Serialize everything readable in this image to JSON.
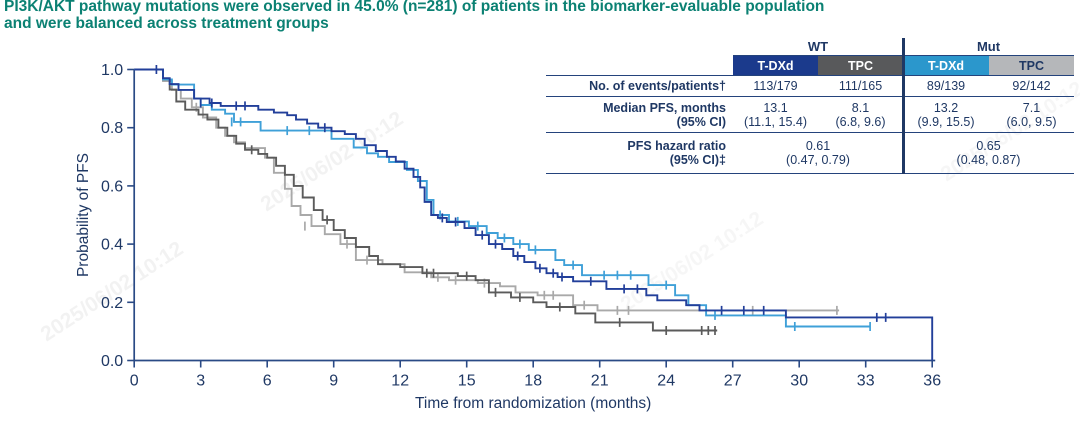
{
  "title": {
    "line1": "PI3K/AKT pathway mutations were observed in 45.0% (n=281) of patients in the biomarker-evaluable population",
    "line2": "and were balanced across treatment groups"
  },
  "watermark": {
    "text": "2025/06/02 10:12"
  },
  "colors": {
    "title_teal": "#0b8173",
    "navy_text": "#1f3864",
    "axis": "#2a4a85",
    "hdr_wt_tdxd_bg": "#1b3a8c",
    "hdr_wt_tpc_bg": "#58595b",
    "hdr_mut_tdxd_bg": "#2b97cc",
    "hdr_mut_tpc_bg": "#b5b7ba"
  },
  "table": {
    "group_headers": [
      "WT",
      "Mut"
    ],
    "col_headers": [
      "T-DXd",
      "TPC",
      "T-DXd",
      "TPC"
    ],
    "row_events": {
      "label": "No. of events/patients†",
      "values": [
        "113/179",
        "111/165",
        "89/139",
        "92/142"
      ]
    },
    "row_median": {
      "label": "Median PFS, months",
      "label_sub": "(95% CI)",
      "values": [
        "13.1",
        "8.1",
        "13.2",
        "7.1"
      ],
      "ci": [
        "(11.1, 15.4)",
        "(6.8, 9.6)",
        "(9.9, 15.5)",
        "(6.0, 9.5)"
      ]
    },
    "row_hr": {
      "label": "PFS hazard ratio",
      "label_sub": "(95% CI)‡",
      "values": [
        "0.61",
        "0.65"
      ],
      "ci": [
        "(0.47, 0.79)",
        "(0.48, 0.87)"
      ]
    }
  },
  "chart_data": {
    "type": "line",
    "subtype": "kaplan-meier-step",
    "title": "",
    "xlabel": "Time from randomization (months)",
    "ylabel": "Probability of PFS",
    "xlim": [
      0,
      36
    ],
    "ylim": [
      0.0,
      1.0
    ],
    "xticks": [
      0,
      3,
      6,
      9,
      12,
      15,
      18,
      21,
      24,
      27,
      30,
      33,
      36
    ],
    "yticks": [
      0.0,
      0.2,
      0.4,
      0.6,
      0.8,
      1.0
    ],
    "grid": false,
    "legend": "none (series identified by table header colors)",
    "series": [
      {
        "id": "tpc_mut",
        "name": "TPC — Mut",
        "color": "#a9a9a9",
        "median_pfs_months": 7.1,
        "steps": [
          [
            0,
            1
          ],
          [
            1.3,
            0.96
          ],
          [
            1.7,
            0.93
          ],
          [
            2.1,
            0.9
          ],
          [
            2.6,
            0.87
          ],
          [
            3.1,
            0.835
          ],
          [
            3.7,
            0.8
          ],
          [
            4.1,
            0.772
          ],
          [
            4.5,
            0.75
          ],
          [
            5,
            0.73
          ],
          [
            5.9,
            0.697
          ],
          [
            6.3,
            0.645
          ],
          [
            6.8,
            0.59
          ],
          [
            7.1,
            0.531
          ],
          [
            7.5,
            0.5
          ],
          [
            8,
            0.462
          ],
          [
            8.6,
            0.434
          ],
          [
            9.3,
            0.4
          ],
          [
            10,
            0.345
          ],
          [
            11.2,
            0.331
          ],
          [
            12.2,
            0.303
          ],
          [
            13.4,
            0.286
          ],
          [
            14.2,
            0.276
          ],
          [
            15.5,
            0.266
          ],
          [
            16.5,
            0.255
          ],
          [
            17.2,
            0.234
          ],
          [
            18.2,
            0.224
          ],
          [
            19.8,
            0.19
          ],
          [
            20.9,
            0.172
          ],
          [
            31.8,
            0.172
          ]
        ],
        "censors": [
          [
            2.8,
            0.87
          ],
          [
            7.7,
            0.462
          ],
          [
            9.6,
            0.4
          ],
          [
            10.5,
            0.345
          ],
          [
            13.7,
            0.286
          ],
          [
            14.5,
            0.276
          ],
          [
            15.8,
            0.266
          ],
          [
            18.5,
            0.224
          ],
          [
            18.9,
            0.224
          ],
          [
            20.3,
            0.19
          ],
          [
            21.8,
            0.172
          ],
          [
            22.3,
            0.172
          ],
          [
            27.9,
            0.172
          ],
          [
            31.7,
            0.172
          ]
        ],
        "terminal_drop": false
      },
      {
        "id": "tpc_wt",
        "name": "TPC — WT",
        "color": "#5b5b5b",
        "median_pfs_months": 8.1,
        "steps": [
          [
            0,
            1
          ],
          [
            1.3,
            0.966
          ],
          [
            1.6,
            0.931
          ],
          [
            1.9,
            0.89
          ],
          [
            2.3,
            0.862
          ],
          [
            2.9,
            0.845
          ],
          [
            3.3,
            0.828
          ],
          [
            3.8,
            0.8
          ],
          [
            4.2,
            0.772
          ],
          [
            4.6,
            0.745
          ],
          [
            5,
            0.724
          ],
          [
            5.6,
            0.71
          ],
          [
            6,
            0.697
          ],
          [
            6.4,
            0.669
          ],
          [
            6.8,
            0.638
          ],
          [
            7.2,
            0.6
          ],
          [
            7.6,
            0.56
          ],
          [
            8.1,
            0.517
          ],
          [
            8.5,
            0.483
          ],
          [
            9,
            0.448
          ],
          [
            9.5,
            0.421
          ],
          [
            10,
            0.39
          ],
          [
            10.6,
            0.359
          ],
          [
            11,
            0.331
          ],
          [
            12,
            0.321
          ],
          [
            13,
            0.3
          ],
          [
            14.6,
            0.29
          ],
          [
            15.4,
            0.276
          ],
          [
            16,
            0.234
          ],
          [
            17,
            0.217
          ],
          [
            18,
            0.2
          ],
          [
            18.6,
            0.184
          ],
          [
            19.9,
            0.162
          ],
          [
            20.8,
            0.131
          ],
          [
            23.4,
            0.103
          ],
          [
            26.3,
            0.103
          ]
        ],
        "censors": [
          [
            5.3,
            0.724
          ],
          [
            8.7,
            0.483
          ],
          [
            13.2,
            0.3
          ],
          [
            13.5,
            0.3
          ],
          [
            15,
            0.29
          ],
          [
            16.3,
            0.234
          ],
          [
            17.4,
            0.217
          ],
          [
            19.2,
            0.184
          ],
          [
            21.9,
            0.131
          ],
          [
            24,
            0.103
          ],
          [
            25.6,
            0.103
          ],
          [
            25.9,
            0.103
          ],
          [
            26.2,
            0.103
          ]
        ],
        "terminal_drop": false
      },
      {
        "id": "tdxd_mut",
        "name": "T-DXd — Mut",
        "color": "#3fa0d8",
        "median_pfs_months": 13.2,
        "steps": [
          [
            0,
            1
          ],
          [
            1.3,
            0.966
          ],
          [
            1.7,
            0.948
          ],
          [
            2.7,
            0.9
          ],
          [
            3,
            0.878
          ],
          [
            3.5,
            0.862
          ],
          [
            4.1,
            0.848
          ],
          [
            4.5,
            0.82
          ],
          [
            5.7,
            0.79
          ],
          [
            8.9,
            0.762
          ],
          [
            9.9,
            0.732
          ],
          [
            10.5,
            0.712
          ],
          [
            11,
            0.7
          ],
          [
            11.5,
            0.682
          ],
          [
            12.3,
            0.655
          ],
          [
            12.8,
            0.617
          ],
          [
            13.2,
            0.552
          ],
          [
            13.5,
            0.5
          ],
          [
            14.2,
            0.478
          ],
          [
            15.1,
            0.462
          ],
          [
            15.9,
            0.438
          ],
          [
            16.4,
            0.421
          ],
          [
            17.1,
            0.4
          ],
          [
            17.8,
            0.38
          ],
          [
            19,
            0.345
          ],
          [
            19.4,
            0.328
          ],
          [
            20.2,
            0.293
          ],
          [
            23.2,
            0.259
          ],
          [
            24.4,
            0.224
          ],
          [
            25,
            0.19
          ],
          [
            25.8,
            0.155
          ],
          [
            29.4,
            0.117
          ],
          [
            33.2,
            0.117
          ]
        ],
        "censors": [
          [
            4.4,
            0.82
          ],
          [
            4.8,
            0.82
          ],
          [
            6.9,
            0.79
          ],
          [
            7.9,
            0.79
          ],
          [
            13.8,
            0.5
          ],
          [
            14.6,
            0.478
          ],
          [
            15.5,
            0.462
          ],
          [
            16.7,
            0.421
          ],
          [
            17.4,
            0.4
          ],
          [
            18.1,
            0.38
          ],
          [
            19.8,
            0.328
          ],
          [
            21.2,
            0.293
          ],
          [
            21.8,
            0.293
          ],
          [
            22.4,
            0.293
          ],
          [
            24,
            0.259
          ],
          [
            26.2,
            0.155
          ],
          [
            29.8,
            0.117
          ],
          [
            33.2,
            0.117
          ]
        ],
        "terminal_drop": false
      },
      {
        "id": "tdxd_wt",
        "name": "T-DXd — WT",
        "color": "#223f9a",
        "median_pfs_months": 13.1,
        "steps": [
          [
            0,
            1
          ],
          [
            1.3,
            0.97
          ],
          [
            1.6,
            0.95
          ],
          [
            2,
            0.93
          ],
          [
            2.7,
            0.9
          ],
          [
            3.4,
            0.885
          ],
          [
            3.9,
            0.875
          ],
          [
            5.6,
            0.862
          ],
          [
            6.3,
            0.852
          ],
          [
            6.9,
            0.843
          ],
          [
            7.3,
            0.828
          ],
          [
            7.8,
            0.814
          ],
          [
            8.3,
            0.8
          ],
          [
            8.9,
            0.788
          ],
          [
            9.5,
            0.778
          ],
          [
            10,
            0.762
          ],
          [
            10.4,
            0.74
          ],
          [
            10.9,
            0.72
          ],
          [
            11.4,
            0.7
          ],
          [
            11.8,
            0.684
          ],
          [
            12.2,
            0.659
          ],
          [
            12.6,
            0.631
          ],
          [
            12.9,
            0.595
          ],
          [
            13.1,
            0.545
          ],
          [
            13.4,
            0.5
          ],
          [
            13.7,
            0.49
          ],
          [
            14.1,
            0.476
          ],
          [
            14.9,
            0.455
          ],
          [
            15.4,
            0.431
          ],
          [
            16,
            0.4
          ],
          [
            16.6,
            0.383
          ],
          [
            17.1,
            0.359
          ],
          [
            17.6,
            0.338
          ],
          [
            18.1,
            0.317
          ],
          [
            18.6,
            0.3
          ],
          [
            19.1,
            0.287
          ],
          [
            19.8,
            0.272
          ],
          [
            21.3,
            0.246
          ],
          [
            23.1,
            0.224
          ],
          [
            23.6,
            0.207
          ],
          [
            24.9,
            0.19
          ],
          [
            25.5,
            0.172
          ],
          [
            29.4,
            0.148
          ],
          [
            36,
            0
          ]
        ],
        "censors": [
          [
            1,
            1
          ],
          [
            3,
            0.885
          ],
          [
            3.5,
            0.885
          ],
          [
            4.6,
            0.875
          ],
          [
            5,
            0.875
          ],
          [
            8.6,
            0.8
          ],
          [
            13.9,
            0.49
          ],
          [
            14.5,
            0.476
          ],
          [
            15.7,
            0.431
          ],
          [
            16.3,
            0.4
          ],
          [
            17.3,
            0.359
          ],
          [
            18.3,
            0.317
          ],
          [
            18.9,
            0.3
          ],
          [
            19.3,
            0.287
          ],
          [
            20.6,
            0.272
          ],
          [
            22.1,
            0.246
          ],
          [
            22.7,
            0.246
          ],
          [
            26.5,
            0.172
          ],
          [
            27.5,
            0.172
          ],
          [
            28.4,
            0.172
          ],
          [
            33.5,
            0.148
          ],
          [
            33.9,
            0.148
          ]
        ],
        "terminal_drop": true
      }
    ]
  }
}
